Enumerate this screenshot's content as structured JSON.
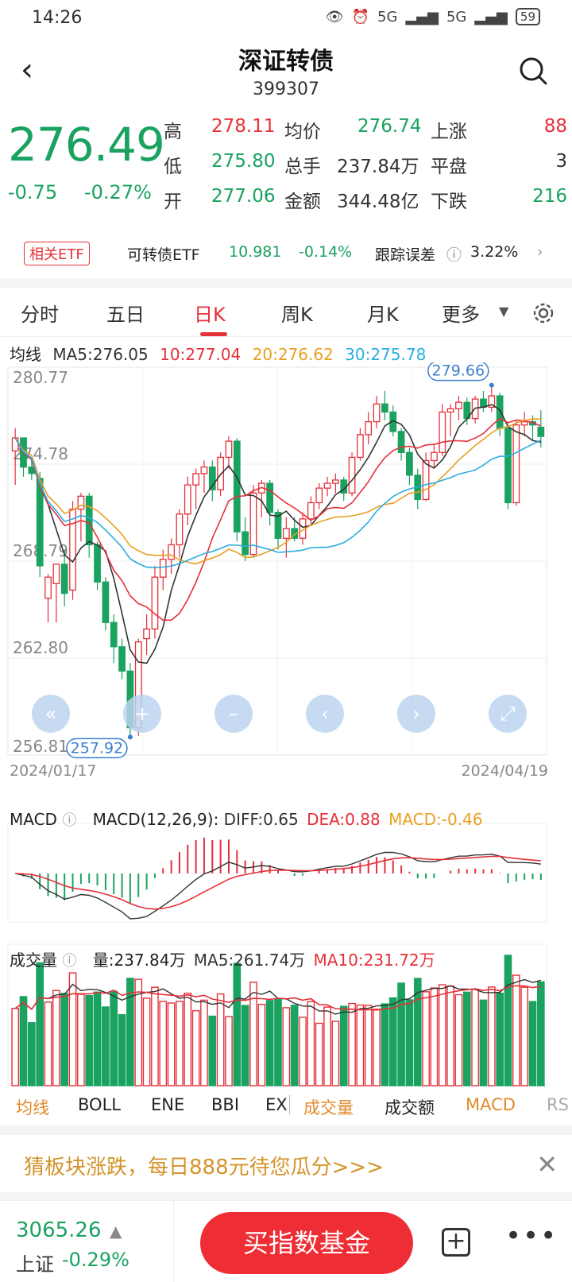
{
  "status": {
    "time": "14:26",
    "battery": "59",
    "signal1": "5G",
    "signal2": "5G"
  },
  "header": {
    "title": "深证转债",
    "code": "399307"
  },
  "quote": {
    "price": "276.49",
    "change": "-0.75",
    "change_pct": "-0.27%",
    "high_label": "高",
    "high": "278.11",
    "low_label": "低",
    "low": "275.80",
    "open_label": "开",
    "open": "277.06",
    "avg_label": "均价",
    "avg": "276.74",
    "vol_label": "总手",
    "vol": "237.84万",
    "amt_label": "金额",
    "amt": "344.48亿",
    "up_label": "上涨",
    "up": "88",
    "flat_label": "平盘",
    "flat": "3",
    "down_label": "下跌",
    "down": "216"
  },
  "etf": {
    "tag": "相关ETF",
    "name": "可转债ETF",
    "price": "10.981",
    "chg": "-0.14%",
    "err_label": "跟踪误差",
    "err": "3.22%"
  },
  "tabs": [
    "分时",
    "五日",
    "日K",
    "周K",
    "月K",
    "更多"
  ],
  "ma": {
    "label": "均线",
    "ma5": "MA5:276.05",
    "ma10": "10:277.04",
    "ma20": "20:276.62",
    "ma30": "30:275.78"
  },
  "chart_data": {
    "type": "candlestick",
    "y_ticks": [
      "280.77",
      "274.78",
      "268.79",
      "262.80",
      "256.81"
    ],
    "ylim": [
      256.81,
      280.77
    ],
    "x_start": "2024/01/17",
    "x_end": "2024/04/19",
    "max_label": "279.66",
    "min_label": "257.92",
    "candles": [
      [
        275.6,
        277.0,
        273.5,
        276.4
      ],
      [
        276.4,
        276.4,
        274.0,
        274.6
      ],
      [
        274.6,
        275.0,
        273.8,
        274.2
      ],
      [
        273.9,
        274.3,
        267.8,
        268.5
      ],
      [
        266.5,
        268.0,
        265.0,
        267.8
      ],
      [
        267.4,
        268.6,
        265.0,
        268.6
      ],
      [
        268.6,
        269.5,
        266.0,
        266.8
      ],
      [
        267.0,
        272.5,
        266.4,
        272.0
      ],
      [
        272.0,
        273.0,
        270.0,
        272.8
      ],
      [
        272.8,
        273.0,
        269.0,
        269.8
      ],
      [
        269.8,
        270.0,
        267.0,
        267.5
      ],
      [
        267.5,
        267.8,
        264.5,
        265.0
      ],
      [
        265.0,
        265.5,
        262.5,
        263.5
      ],
      [
        263.5,
        264.0,
        261.5,
        262.0
      ],
      [
        262.0,
        262.5,
        257.92,
        258.5
      ],
      [
        258.5,
        264.0,
        258.0,
        263.8
      ],
      [
        264.0,
        265.5,
        263.0,
        264.6
      ],
      [
        264.6,
        268.5,
        264.0,
        267.8
      ],
      [
        267.8,
        269.5,
        267.0,
        268.9
      ],
      [
        268.9,
        270.2,
        268.0,
        269.8
      ],
      [
        269.8,
        272.0,
        269.0,
        271.7
      ],
      [
        271.7,
        274.0,
        271.0,
        273.5
      ],
      [
        273.5,
        274.5,
        272.0,
        274.2
      ],
      [
        274.2,
        275.0,
        273.0,
        274.6
      ],
      [
        274.6,
        275.0,
        272.5,
        273.2
      ],
      [
        273.2,
        275.5,
        272.8,
        275.2
      ],
      [
        275.2,
        276.5,
        274.5,
        276.2
      ],
      [
        276.2,
        276.4,
        270.0,
        270.6
      ],
      [
        270.6,
        271.5,
        268.8,
        269.2
      ],
      [
        269.2,
        273.5,
        269.0,
        273.0
      ],
      [
        273.0,
        273.8,
        271.5,
        273.6
      ],
      [
        273.6,
        273.8,
        271.0,
        271.8
      ],
      [
        271.8,
        272.0,
        269.5,
        270.2
      ],
      [
        270.2,
        271.5,
        269.0,
        270.8
      ],
      [
        270.8,
        271.5,
        270.0,
        270.2
      ],
      [
        270.2,
        271.8,
        269.8,
        271.4
      ],
      [
        271.4,
        272.8,
        271.0,
        272.4
      ],
      [
        272.4,
        273.6,
        272.0,
        273.3
      ],
      [
        273.3,
        274.0,
        272.8,
        273.6
      ],
      [
        273.6,
        274.2,
        273.0,
        273.8
      ],
      [
        273.8,
        274.0,
        272.5,
        273.0
      ],
      [
        273.0,
        275.5,
        272.8,
        275.2
      ],
      [
        275.2,
        277.0,
        275.0,
        276.6
      ],
      [
        276.6,
        278.0,
        276.0,
        277.4
      ],
      [
        277.4,
        279.0,
        277.0,
        278.5
      ],
      [
        278.5,
        279.3,
        277.5,
        278.0
      ],
      [
        278.0,
        278.4,
        276.5,
        276.8
      ],
      [
        276.8,
        277.0,
        275.0,
        275.5
      ],
      [
        275.5,
        275.8,
        273.5,
        274.1
      ],
      [
        274.1,
        274.5,
        272.0,
        272.6
      ],
      [
        272.6,
        275.5,
        272.5,
        275.0
      ],
      [
        275.0,
        276.0,
        274.5,
        275.5
      ],
      [
        275.5,
        278.5,
        275.3,
        278.0
      ],
      [
        278.0,
        278.5,
        276.5,
        278.2
      ],
      [
        278.2,
        279.0,
        277.5,
        278.6
      ],
      [
        278.6,
        278.9,
        277.2,
        277.6
      ],
      [
        277.6,
        279.0,
        277.3,
        278.8
      ],
      [
        278.8,
        279.3,
        278.0,
        278.3
      ],
      [
        278.3,
        279.66,
        278.0,
        279.0
      ],
      [
        279.0,
        279.2,
        276.5,
        277.0
      ],
      [
        277.0,
        277.2,
        272.0,
        272.4
      ],
      [
        272.4,
        277.5,
        272.2,
        277.2
      ],
      [
        277.2,
        278.0,
        276.5,
        277.4
      ],
      [
        277.4,
        277.8,
        276.2,
        277.2
      ],
      [
        277.06,
        278.11,
        275.8,
        276.49
      ]
    ]
  },
  "macd": {
    "label": "MACD",
    "params": "MACD(12,26,9):",
    "diff": "DIFF:0.65",
    "dea": "DEA:0.88",
    "macd": "MACD:-0.46"
  },
  "volume": {
    "label": "成交量",
    "vol": "量:237.84万",
    "ma5": "MA5:261.74万",
    "ma10": "MA10:231.72万"
  },
  "indicator_tabs": [
    {
      "label": "均线",
      "color": "#e08a2b"
    },
    {
      "label": "BOLL",
      "color": "#222"
    },
    {
      "label": "ENE",
      "color": "#222"
    },
    {
      "label": "BBI",
      "color": "#222"
    },
    {
      "label": "EX",
      "color": "#222"
    },
    {
      "label": "成交量",
      "color": "#e08a2b"
    },
    {
      "label": "成交额",
      "color": "#222"
    },
    {
      "label": "MACD",
      "color": "#e08a2b"
    },
    {
      "label": "RS",
      "color": "#aaa"
    }
  ],
  "promo": {
    "text": "猜板块涨跌，每日888元待您瓜分>>>"
  },
  "bottom": {
    "index_value": "3065.26",
    "index_name": "上证",
    "index_chg": "-0.29%",
    "buy_label": "买指数基金"
  },
  "colors": {
    "up": "#e5303a",
    "down": "#1aa260",
    "ma5": "#333333",
    "ma10": "#e5303a",
    "ma20": "#e8a020",
    "ma30": "#2aaee0"
  }
}
